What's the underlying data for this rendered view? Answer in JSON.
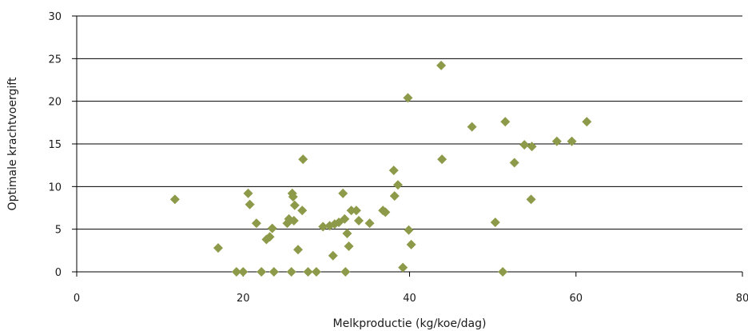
{
  "chart_data": {
    "type": "scatter",
    "title": "",
    "xlabel": "Melkproductie (kg/koe/dag)",
    "ylabel": "Optimale krachtvoergift",
    "xlim": [
      0,
      80
    ],
    "ylim": [
      0,
      30
    ],
    "x_ticks": [
      0,
      20,
      40,
      60,
      80
    ],
    "y_ticks": [
      0,
      5,
      10,
      15,
      20,
      25,
      30
    ],
    "grid": "horizontal",
    "marker": "diamond",
    "colors": {
      "marker": "#8c9a4a",
      "grid": "#000000",
      "axis": "#000000",
      "text": "#1a1a1a"
    },
    "series": [
      {
        "values": [
          {
            "x": 11.8,
            "y": 8.5
          },
          {
            "x": 17.0,
            "y": 2.8
          },
          {
            "x": 19.2,
            "y": 0.0
          },
          {
            "x": 20.0,
            "y": 0.0
          },
          {
            "x": 20.6,
            "y": 9.2
          },
          {
            "x": 20.8,
            "y": 7.9
          },
          {
            "x": 21.6,
            "y": 5.7
          },
          {
            "x": 22.2,
            "y": 0.0
          },
          {
            "x": 22.8,
            "y": 3.8
          },
          {
            "x": 23.2,
            "y": 4.1
          },
          {
            "x": 23.5,
            "y": 5.1
          },
          {
            "x": 23.7,
            "y": 0.0
          },
          {
            "x": 25.3,
            "y": 5.7
          },
          {
            "x": 25.5,
            "y": 6.2
          },
          {
            "x": 25.8,
            "y": 0.0
          },
          {
            "x": 25.9,
            "y": 9.2
          },
          {
            "x": 26.0,
            "y": 8.8
          },
          {
            "x": 26.1,
            "y": 6.0
          },
          {
            "x": 26.2,
            "y": 7.8
          },
          {
            "x": 26.6,
            "y": 2.6
          },
          {
            "x": 27.1,
            "y": 7.2
          },
          {
            "x": 27.2,
            "y": 13.2
          },
          {
            "x": 27.8,
            "y": 0.0
          },
          {
            "x": 28.8,
            "y": 0.0
          },
          {
            "x": 29.6,
            "y": 5.3
          },
          {
            "x": 30.4,
            "y": 5.4
          },
          {
            "x": 30.8,
            "y": 1.9
          },
          {
            "x": 31.0,
            "y": 5.6
          },
          {
            "x": 31.5,
            "y": 5.8
          },
          {
            "x": 32.0,
            "y": 9.2
          },
          {
            "x": 32.2,
            "y": 6.2
          },
          {
            "x": 32.3,
            "y": 0.0
          },
          {
            "x": 32.5,
            "y": 4.5
          },
          {
            "x": 32.7,
            "y": 3.0
          },
          {
            "x": 33.0,
            "y": 7.2
          },
          {
            "x": 33.6,
            "y": 7.2
          },
          {
            "x": 33.9,
            "y": 6.0
          },
          {
            "x": 35.2,
            "y": 5.7
          },
          {
            "x": 36.8,
            "y": 7.2
          },
          {
            "x": 37.1,
            "y": 7.0
          },
          {
            "x": 38.1,
            "y": 11.9
          },
          {
            "x": 38.2,
            "y": 8.9
          },
          {
            "x": 38.6,
            "y": 10.2
          },
          {
            "x": 39.2,
            "y": 0.5
          },
          {
            "x": 39.8,
            "y": 20.4
          },
          {
            "x": 39.9,
            "y": 4.9
          },
          {
            "x": 40.2,
            "y": 3.2
          },
          {
            "x": 43.8,
            "y": 24.2
          },
          {
            "x": 43.9,
            "y": 13.2
          },
          {
            "x": 47.5,
            "y": 17.0
          },
          {
            "x": 50.3,
            "y": 5.8
          },
          {
            "x": 51.2,
            "y": 0.0
          },
          {
            "x": 51.5,
            "y": 17.6
          },
          {
            "x": 52.6,
            "y": 12.8
          },
          {
            "x": 53.8,
            "y": 14.9
          },
          {
            "x": 54.6,
            "y": 8.5
          },
          {
            "x": 54.7,
            "y": 14.7
          },
          {
            "x": 57.7,
            "y": 15.3
          },
          {
            "x": 59.5,
            "y": 15.3
          },
          {
            "x": 61.3,
            "y": 17.6
          }
        ]
      }
    ]
  }
}
